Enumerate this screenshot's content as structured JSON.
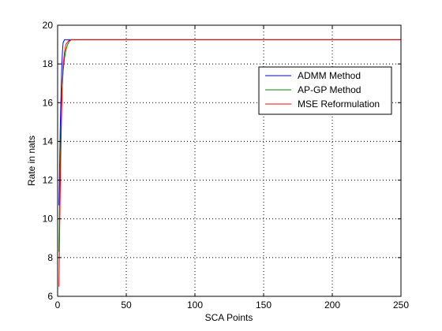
{
  "chart_data": {
    "type": "line",
    "title": "",
    "xlabel": "SCA Points",
    "ylabel": "Rate in nats",
    "xlim": [
      0,
      250
    ],
    "ylim": [
      6,
      20
    ],
    "xticks": [
      0,
      50,
      100,
      150,
      200,
      250
    ],
    "yticks": [
      6,
      8,
      10,
      12,
      14,
      16,
      18,
      20
    ],
    "xtick_labels": [
      "0",
      "50",
      "100",
      "150",
      "200",
      "250"
    ],
    "ytick_labels": [
      "6",
      "8",
      "10",
      "12",
      "14",
      "16",
      "18",
      "20"
    ],
    "grid": true,
    "legend_position": "top-right",
    "series": [
      {
        "name": "ADMM Method",
        "color": "#0000ff",
        "x": [
          1,
          1.5,
          2,
          2.5,
          3,
          3.5,
          4,
          5,
          6,
          250
        ],
        "y": [
          10.7,
          13.0,
          15.0,
          16.5,
          17.8,
          18.6,
          19.1,
          19.25,
          19.25,
          19.25
        ]
      },
      {
        "name": "AP-GP Method",
        "color": "#008000",
        "x": [
          1,
          1.5,
          2,
          2.5,
          3,
          4,
          5,
          6,
          7,
          8,
          9,
          10,
          250
        ],
        "y": [
          8.3,
          11.0,
          13.2,
          15.0,
          16.4,
          17.6,
          18.3,
          18.7,
          18.95,
          19.1,
          19.2,
          19.25,
          19.25
        ]
      },
      {
        "name": "MSE Reformulation",
        "color": "#ff0000",
        "x": [
          1,
          1.5,
          2,
          2.5,
          3,
          3.5,
          4,
          5,
          6,
          8,
          10,
          250
        ],
        "y": [
          6.5,
          9.5,
          12.0,
          14.0,
          15.8,
          17.0,
          17.9,
          18.6,
          19.0,
          19.2,
          19.25,
          19.25
        ]
      }
    ]
  }
}
